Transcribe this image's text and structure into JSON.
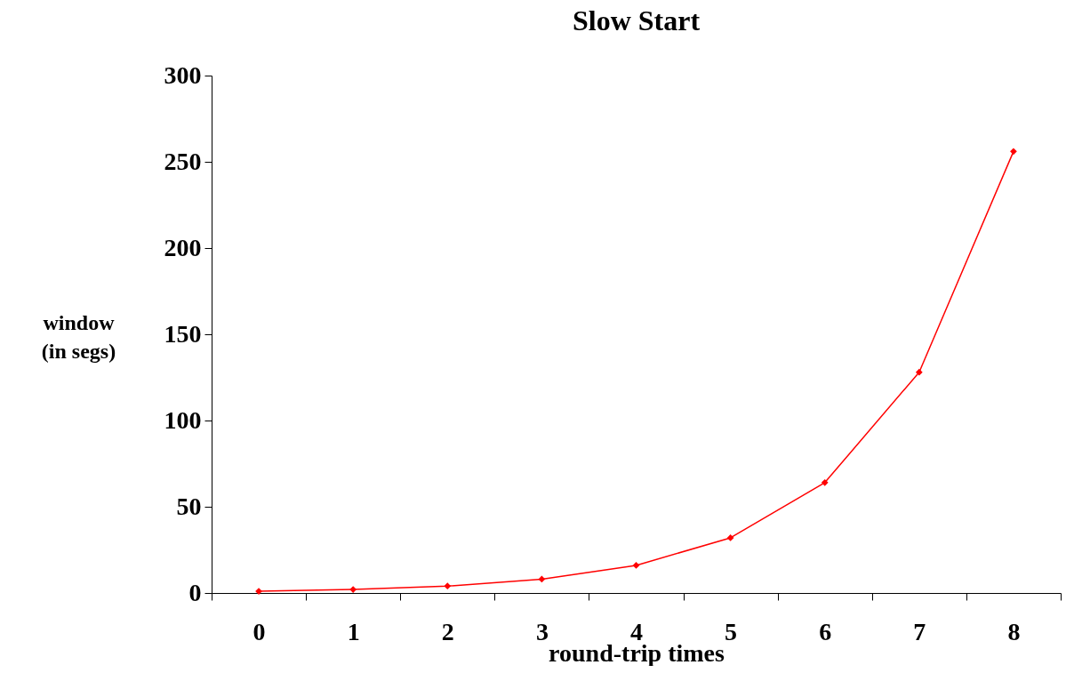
{
  "chart_data": {
    "type": "line",
    "title": "Slow Start",
    "xlabel": "round-trip times",
    "ylabel": "window (in segs)",
    "categories": [
      "0",
      "1",
      "2",
      "3",
      "4",
      "5",
      "6",
      "7",
      "8"
    ],
    "series": [
      {
        "color": "#ff0000",
        "values": [
          1,
          2,
          4,
          8,
          16,
          32,
          64,
          128,
          256
        ]
      }
    ],
    "ylim": [
      0,
      300
    ],
    "yticks": [
      0,
      50,
      100,
      150,
      200,
      250,
      300
    ],
    "grid": false,
    "marker": "diamond",
    "line_style": "solid"
  }
}
